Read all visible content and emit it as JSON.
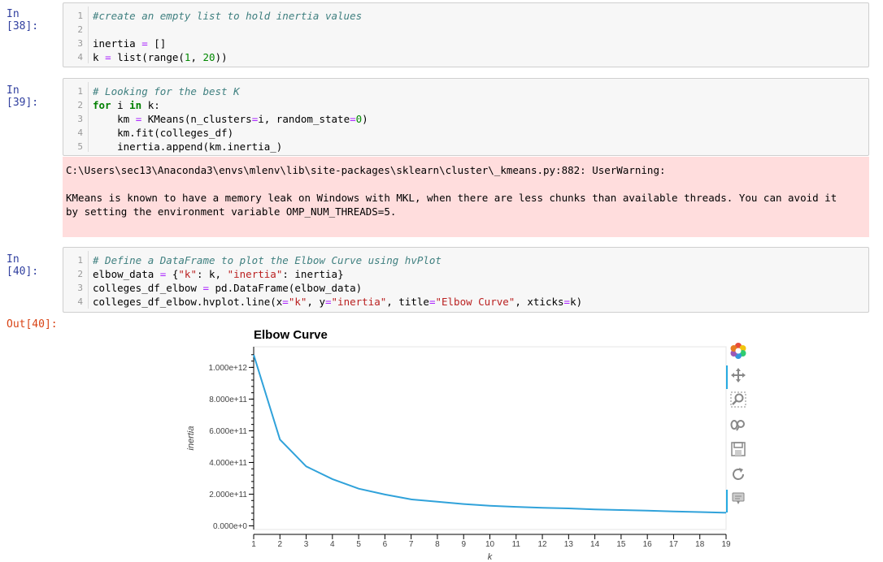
{
  "cells": [
    {
      "prompt": "In [38]:",
      "lines": [
        {
          "n": "1",
          "parts": [
            {
              "c": "cm",
              "t": "#create an empty list to hold inertia values"
            }
          ]
        },
        {
          "n": "2",
          "parts": []
        },
        {
          "n": "3",
          "parts": [
            {
              "c": "",
              "t": "inertia "
            },
            {
              "c": "op",
              "t": "="
            },
            {
              "c": "",
              "t": " []"
            }
          ]
        },
        {
          "n": "4",
          "parts": [
            {
              "c": "",
              "t": "k "
            },
            {
              "c": "op",
              "t": "="
            },
            {
              "c": "",
              "t": " list(range("
            },
            {
              "c": "num",
              "t": "1"
            },
            {
              "c": "",
              "t": ", "
            },
            {
              "c": "num",
              "t": "20"
            },
            {
              "c": "",
              "t": "))"
            }
          ]
        }
      ]
    },
    {
      "prompt": "In [39]:",
      "lines": [
        {
          "n": "1",
          "parts": [
            {
              "c": "cm",
              "t": "# Looking for the best K"
            }
          ]
        },
        {
          "n": "2",
          "parts": [
            {
              "c": "kw",
              "t": "for"
            },
            {
              "c": "",
              "t": " i "
            },
            {
              "c": "kw",
              "t": "in"
            },
            {
              "c": "",
              "t": " k:"
            }
          ]
        },
        {
          "n": "3",
          "parts": [
            {
              "c": "",
              "t": "    km "
            },
            {
              "c": "op",
              "t": "="
            },
            {
              "c": "",
              "t": " KMeans(n_clusters"
            },
            {
              "c": "op",
              "t": "="
            },
            {
              "c": "",
              "t": "i, random_state"
            },
            {
              "c": "op",
              "t": "="
            },
            {
              "c": "num",
              "t": "0"
            },
            {
              "c": "",
              "t": ")"
            }
          ]
        },
        {
          "n": "4",
          "parts": [
            {
              "c": "",
              "t": "    km.fit(colleges_df)"
            }
          ]
        },
        {
          "n": "5",
          "parts": [
            {
              "c": "",
              "t": "    inertia.append(km.inertia_)"
            }
          ]
        }
      ]
    },
    {
      "prompt": "In [40]:",
      "lines": [
        {
          "n": "1",
          "parts": [
            {
              "c": "cm",
              "t": "# Define a DataFrame to plot the Elbow Curve using hvPlot"
            }
          ]
        },
        {
          "n": "2",
          "parts": [
            {
              "c": "",
              "t": "elbow_data "
            },
            {
              "c": "op",
              "t": "="
            },
            {
              "c": "",
              "t": " {"
            },
            {
              "c": "str",
              "t": "\"k\""
            },
            {
              "c": "",
              "t": ": k, "
            },
            {
              "c": "str",
              "t": "\"inertia\""
            },
            {
              "c": "",
              "t": ": inertia}"
            }
          ]
        },
        {
          "n": "3",
          "parts": [
            {
              "c": "",
              "t": "colleges_df_elbow "
            },
            {
              "c": "op",
              "t": "="
            },
            {
              "c": "",
              "t": " pd.DataFrame(elbow_data)"
            }
          ]
        },
        {
          "n": "4",
          "parts": [
            {
              "c": "",
              "t": "colleges_df_elbow.hvplot.line(x"
            },
            {
              "c": "op",
              "t": "="
            },
            {
              "c": "str",
              "t": "\"k\""
            },
            {
              "c": "",
              "t": ", y"
            },
            {
              "c": "op",
              "t": "="
            },
            {
              "c": "str",
              "t": "\"inertia\""
            },
            {
              "c": "",
              "t": ", title"
            },
            {
              "c": "op",
              "t": "="
            },
            {
              "c": "str",
              "t": "\"Elbow Curve\""
            },
            {
              "c": "",
              "t": ", xticks"
            },
            {
              "c": "op",
              "t": "="
            },
            {
              "c": "",
              "t": "k)"
            }
          ]
        }
      ]
    }
  ],
  "warning_line1": "C:\\Users\\sec13\\Anaconda3\\envs\\mlenv\\lib\\site-packages\\sklearn\\cluster\\_kmeans.py:882: UserWarning:",
  "warning_line2": "KMeans is known to have a memory leak on Windows with MKL, when there are less chunks than available threads. You can avoid it",
  "warning_line3": "by setting the environment variable OMP_NUM_THREADS=5.",
  "out_prompt": "Out[40]:",
  "toolbar_icons": [
    "bokeh-logo-icon",
    "pan-icon",
    "box-zoom-icon",
    "wheel-zoom-icon",
    "save-icon",
    "reset-icon",
    "hover-icon"
  ],
  "chart_data": {
    "type": "line",
    "title": "Elbow Curve",
    "xlabel": "k",
    "ylabel": "inertia",
    "x": [
      1,
      2,
      3,
      4,
      5,
      6,
      7,
      8,
      9,
      10,
      11,
      12,
      13,
      14,
      15,
      16,
      17,
      18,
      19
    ],
    "y": [
      1080000000000.0,
      545000000000.0,
      375000000000.0,
      295000000000.0,
      235000000000.0,
      198000000000.0,
      167000000000.0,
      152000000000.0,
      138000000000.0,
      127000000000.0,
      120000000000.0,
      114000000000.0,
      110000000000.0,
      104000000000.0,
      100000000000.0,
      96000000000.0,
      91000000000.0,
      87000000000.0,
      83000000000.0
    ],
    "yticks": [
      {
        "v": 0,
        "label": "0.000e+0"
      },
      {
        "v": 200000000000.0,
        "label": "2.000e+11"
      },
      {
        "v": 400000000000.0,
        "label": "4.000e+11"
      },
      {
        "v": 600000000000.0,
        "label": "6.000e+11"
      },
      {
        "v": 800000000000.0,
        "label": "8.000e+11"
      },
      {
        "v": 1000000000000.0,
        "label": "1.000e+12"
      }
    ],
    "xticks": [
      "1",
      "2",
      "3",
      "4",
      "5",
      "6",
      "7",
      "8",
      "9",
      "10",
      "11",
      "12",
      "13",
      "14",
      "15",
      "16",
      "17",
      "18",
      "19"
    ],
    "xlim": [
      1,
      19
    ],
    "ylim": [
      -23000000000.0,
      1130000000000.0
    ],
    "line_color": "#30a2da",
    "grid": false
  }
}
